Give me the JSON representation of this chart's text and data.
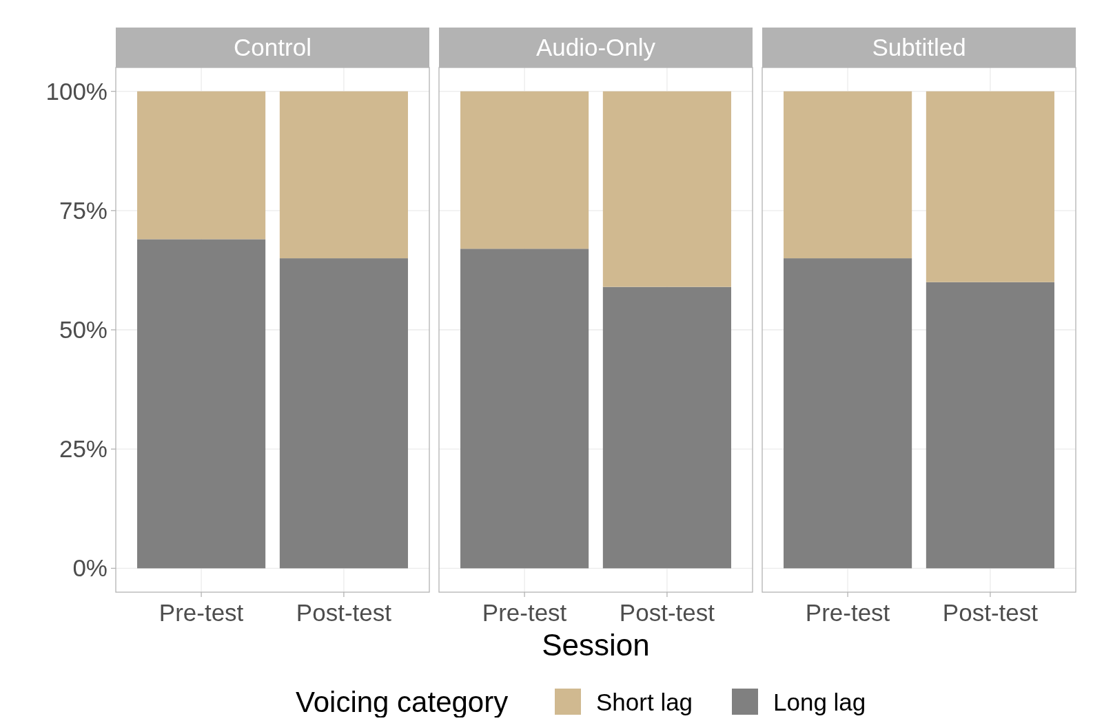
{
  "chart_data": [
    {
      "type": "bar",
      "title": "Control",
      "categories": [
        "Pre-test",
        "Post-test"
      ],
      "stacked": true,
      "ylim": [
        -5,
        105
      ],
      "yticks": [
        {
          "value": 0,
          "label": "0%"
        },
        {
          "value": 25,
          "label": "25%"
        },
        {
          "value": 50,
          "label": "50%"
        },
        {
          "value": 75,
          "label": "75%"
        },
        {
          "value": 100,
          "label": "100%"
        }
      ],
      "grid": true,
      "legend": false,
      "series": [
        {
          "color": "#808080",
          "values": [
            69,
            65
          ]
        },
        {
          "color": "#d0b990",
          "values": [
            31,
            35
          ]
        }
      ]
    },
    {
      "type": "bar",
      "title": "Audio-Only",
      "categories": [
        "Pre-test",
        "Post-test"
      ],
      "stacked": true,
      "xlabel": "Session",
      "legend_title": "Voicing category",
      "legend": "bottom",
      "ylim": [
        -5,
        105
      ],
      "yticks": [
        0,
        25,
        50,
        75,
        100
      ],
      "grid": true,
      "tick_labels": "x",
      "series": [
        {
          "name": "Long lag",
          "color": "#808080",
          "values": [
            67,
            59
          ]
        },
        {
          "name": "Short lag",
          "color": "#d0b990",
          "values": [
            33,
            41
          ]
        }
      ]
    },
    {
      "type": "bar",
      "title": "Subtitled",
      "categories": [
        "Pre-test",
        "Post-test"
      ],
      "stacked": true,
      "ylim": [
        -5,
        105
      ],
      "yticks": [
        0,
        25,
        50,
        75,
        100
      ],
      "grid": true,
      "tick_labels": "x",
      "legend": false,
      "series": [
        {
          "color": "#808080",
          "values": [
            65,
            60
          ]
        },
        {
          "color": "#d0b990",
          "values": [
            35,
            40
          ]
        }
      ]
    }
  ]
}
